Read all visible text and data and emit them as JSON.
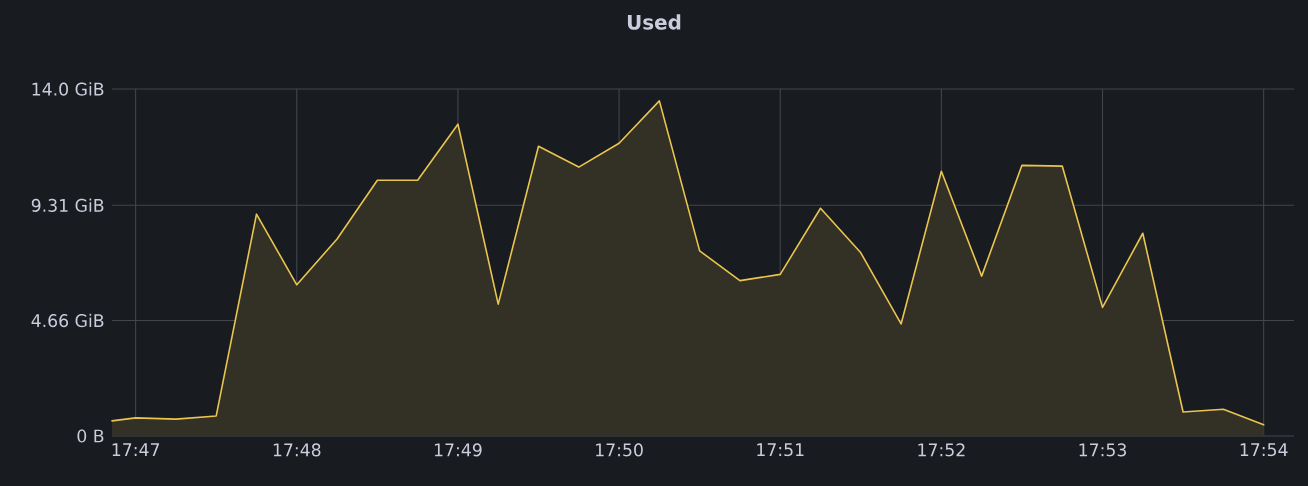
{
  "chart_data": {
    "type": "area",
    "title": "Used",
    "x": [
      17.780889,
      17.783333,
      17.7875,
      17.791667,
      17.795833,
      17.8,
      17.804167,
      17.808333,
      17.8125,
      17.816667,
      17.820833,
      17.825,
      17.829167,
      17.833333,
      17.8375,
      17.841667,
      17.845833,
      17.85,
      17.854167,
      17.858333,
      17.8625,
      17.866667,
      17.870833,
      17.875,
      17.879167,
      17.883333,
      17.8875,
      17.891667,
      17.895833,
      17.9
    ],
    "series": [
      {
        "color": "#eac54f",
        "values": [
          0.61,
          0.73,
          0.68,
          0.81,
          8.95,
          6.1,
          7.95,
          10.32,
          10.32,
          12.58,
          5.32,
          11.69,
          10.85,
          11.81,
          13.52,
          7.47,
          6.27,
          6.52,
          9.19,
          7.39,
          4.52,
          10.68,
          6.45,
          10.92,
          10.89,
          5.19,
          8.18,
          0.97,
          1.08,
          0.45
        ]
      }
    ],
    "xlim": [
      17.780889,
      17.903139
    ],
    "ylim": [
      0,
      14
    ],
    "xticks": [
      {
        "value": 17.783333,
        "label": "17:47"
      },
      {
        "value": 17.8,
        "label": "17:48"
      },
      {
        "value": 17.816667,
        "label": "17:49"
      },
      {
        "value": 17.833333,
        "label": "17:50"
      },
      {
        "value": 17.85,
        "label": "17:51"
      },
      {
        "value": 17.866667,
        "label": "17:52"
      },
      {
        "value": 17.883333,
        "label": "17:53"
      },
      {
        "value": 17.9,
        "label": "17:54"
      }
    ],
    "yticks": [
      {
        "value": 0,
        "label": "0 B"
      },
      {
        "value": 4.66,
        "label": "4.66 GiB"
      },
      {
        "value": 9.31,
        "label": "9.31 GiB"
      },
      {
        "value": 14,
        "label": "14.0 GiB"
      }
    ],
    "grid": true
  }
}
